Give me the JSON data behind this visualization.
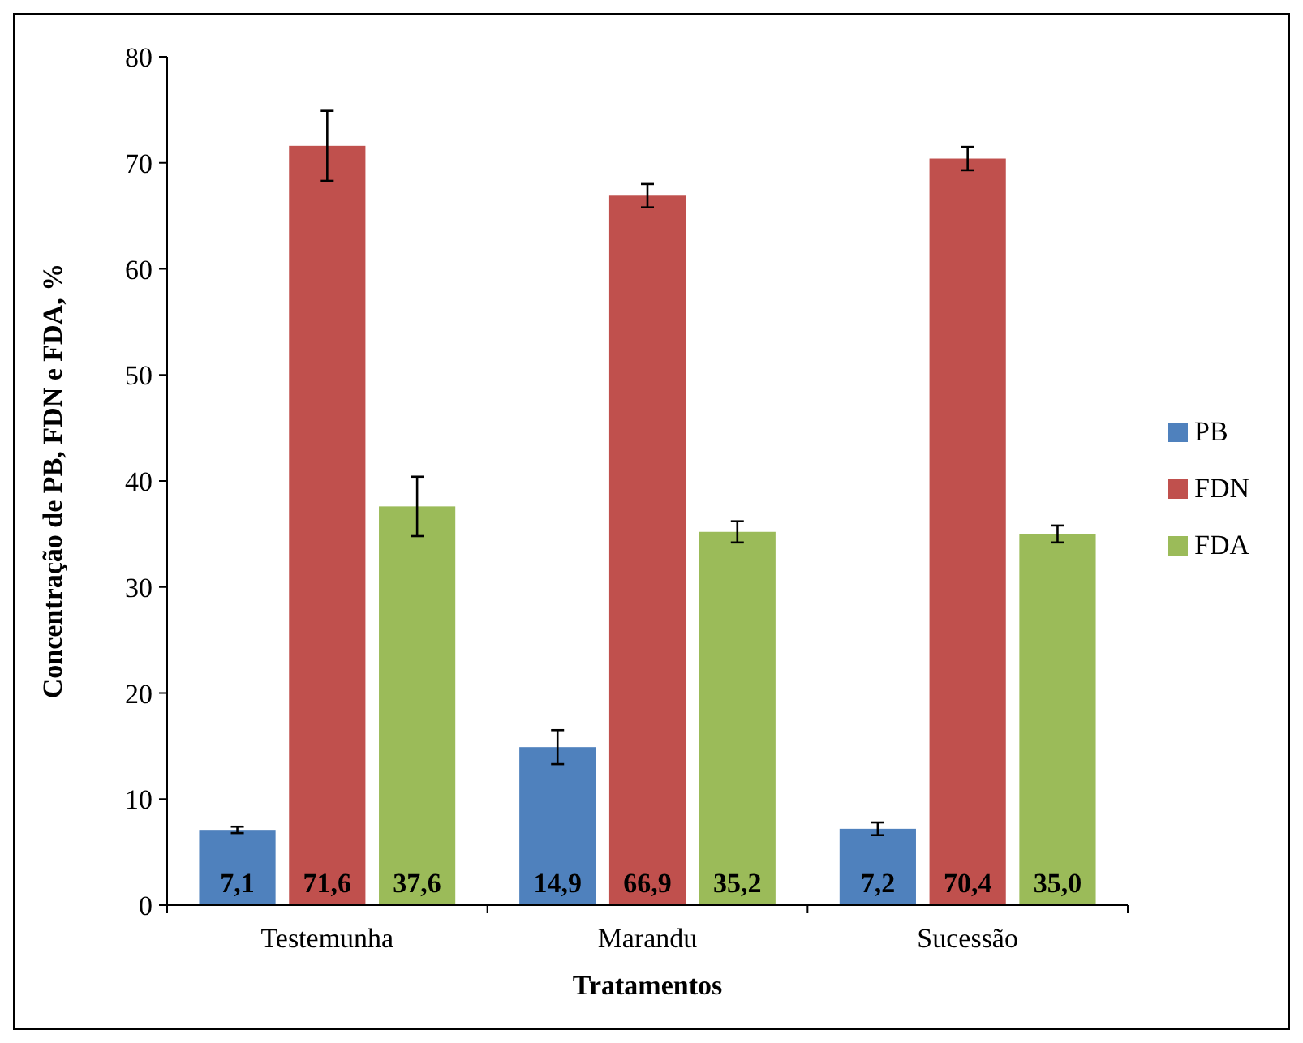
{
  "chart_data": {
    "type": "bar",
    "xlabel": "Tratamentos",
    "ylabel": "Concentração de PB, FDN e FDA, %",
    "categories": [
      "Testemunha",
      "Marandu",
      "Sucessão"
    ],
    "series": [
      {
        "name": "PB",
        "color": "#4f81bd",
        "values": [
          7.1,
          14.9,
          7.2
        ],
        "errors": [
          0.3,
          1.6,
          0.6
        ],
        "value_labels": [
          "7,1",
          "14,9",
          "7,2"
        ]
      },
      {
        "name": "FDN",
        "color": "#c0504d",
        "values": [
          71.6,
          66.9,
          70.4
        ],
        "errors": [
          3.3,
          1.1,
          1.1
        ],
        "value_labels": [
          "71,6",
          "66,9",
          "70,4"
        ]
      },
      {
        "name": "FDA",
        "color": "#9bbb59",
        "values": [
          37.6,
          35.2,
          35.0
        ],
        "errors": [
          2.8,
          1.0,
          0.8
        ],
        "value_labels": [
          "37,6",
          "35,2",
          "35,0"
        ]
      }
    ],
    "ylim": [
      0,
      80
    ],
    "yticks": [
      0,
      10,
      20,
      30,
      40,
      50,
      60,
      70,
      80
    ],
    "grid": false,
    "legend": "right"
  }
}
